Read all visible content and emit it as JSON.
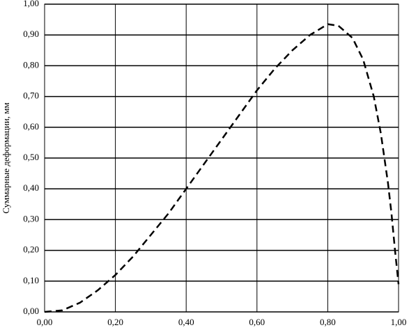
{
  "chart_data": {
    "type": "line",
    "y_label": "Суммарные деформации, мм",
    "x": [
      0,
      0.05,
      0.1,
      0.15,
      0.2,
      0.25,
      0.3,
      0.35,
      0.4,
      0.45,
      0.5,
      0.55,
      0.6,
      0.65,
      0.7,
      0.75,
      0.8,
      0.83,
      0.87,
      0.9,
      0.93,
      0.95,
      0.97,
      0.98,
      0.99,
      1.0
    ],
    "series": [
      {
        "color": "#000000",
        "dashed": true,
        "values": [
          0,
          0.005,
          0.03,
          0.07,
          0.12,
          0.18,
          0.25,
          0.32,
          0.4,
          0.48,
          0.56,
          0.64,
          0.72,
          0.79,
          0.85,
          0.9,
          0.935,
          0.93,
          0.89,
          0.82,
          0.7,
          0.58,
          0.42,
          0.32,
          0.2,
          0.09
        ]
      }
    ],
    "xlim": [
      0,
      1
    ],
    "ylim": [
      0,
      1
    ],
    "xticks": [
      {
        "value": 0,
        "label": "0,00"
      },
      {
        "value": 0.2,
        "label": "0,20"
      },
      {
        "value": 0.4,
        "label": "0,40"
      },
      {
        "value": 0.6,
        "label": "0,60"
      },
      {
        "value": 0.8,
        "label": "0,80"
      },
      {
        "value": 1,
        "label": "1,00"
      }
    ],
    "yticks": [
      {
        "value": 0,
        "label": "0,00"
      },
      {
        "value": 0.1,
        "label": "0,10"
      },
      {
        "value": 0.2,
        "label": "0,20"
      },
      {
        "value": 0.3,
        "label": "0,30"
      },
      {
        "value": 0.4,
        "label": "0,40"
      },
      {
        "value": 0.5,
        "label": "0,50"
      },
      {
        "value": 0.6,
        "label": "0,60"
      },
      {
        "value": 0.7,
        "label": "0,70"
      },
      {
        "value": 0.8,
        "label": "0,80"
      },
      {
        "value": 0.9,
        "label": "0,90"
      },
      {
        "value": 1,
        "label": "1,00"
      }
    ],
    "grid": true
  }
}
